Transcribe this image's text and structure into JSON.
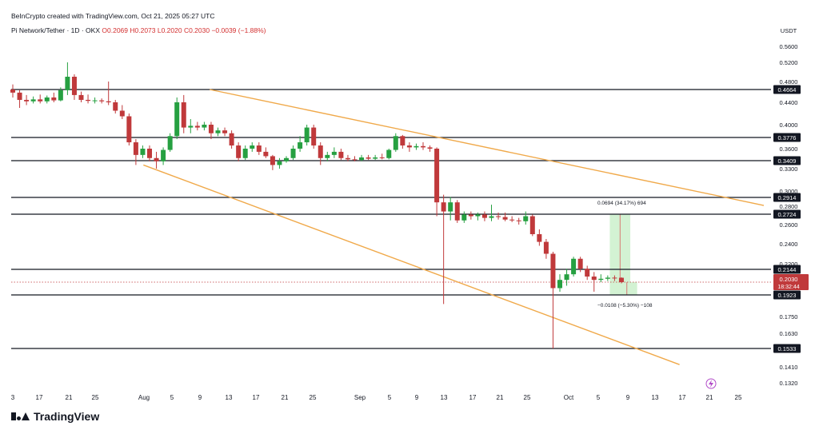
{
  "credit": "BeInCrypto created with TradingView.com, Oct 21, 2025 05:27 UTC",
  "symbol": {
    "name": "Pi Network/Tether · 1D · OKX",
    "ohlc": "O0.2069 H0.2073 L0.2020 C0.2030 −0.0039 (−1.88%)"
  },
  "logo_text": "TradingView",
  "colors": {
    "up": "#26a041",
    "down": "#c0393b",
    "trendline": "#f0a94a",
    "level": "#131722",
    "measure_up": "#c8efc8",
    "measure_down": "#c8efc8"
  },
  "chart_data": {
    "type": "candlestick",
    "currency": "USDT",
    "y_ticks": [
      "0.5600",
      "0.5200",
      "0.4800",
      "0.4400",
      "0.4000",
      "0.3600",
      "0.3300",
      "0.3000",
      "0.2800",
      "0.2600",
      "0.2400",
      "0.2200",
      "0.1750",
      "0.1630",
      "0.1410",
      "0.1320"
    ],
    "x_ticks": [
      "3",
      "17",
      "21",
      "25",
      "Aug",
      "5",
      "9",
      "13",
      "17",
      "21",
      "25",
      "Sep",
      "5",
      "9",
      "13",
      "17",
      "21",
      "25",
      "Oct",
      "5",
      "9",
      "13",
      "17",
      "21",
      "25"
    ],
    "horizontal_levels": [
      "0.4664",
      "0.3776",
      "0.3409",
      "0.2914",
      "0.2724",
      "0.2144",
      "0.1923",
      "0.1533"
    ],
    "current_price": {
      "value": "0.2030",
      "countdown": "18:32:44"
    },
    "measure_up_label": "0.0694 (34.17%) 694",
    "measure_down_label": "−0.0108 (−5.30%) −108",
    "candles": [
      {
        "o": 0.4664,
        "h": 0.475,
        "l": 0.45,
        "c": 0.46
      },
      {
        "o": 0.46,
        "h": 0.465,
        "l": 0.43,
        "c": 0.445
      },
      {
        "o": 0.445,
        "h": 0.455,
        "l": 0.435,
        "c": 0.442
      },
      {
        "o": 0.442,
        "h": 0.452,
        "l": 0.438,
        "c": 0.446
      },
      {
        "o": 0.446,
        "h": 0.456,
        "l": 0.438,
        "c": 0.442
      },
      {
        "o": 0.442,
        "h": 0.454,
        "l": 0.438,
        "c": 0.45
      },
      {
        "o": 0.45,
        "h": 0.46,
        "l": 0.44,
        "c": 0.444
      },
      {
        "o": 0.444,
        "h": 0.47,
        "l": 0.442,
        "c": 0.465
      },
      {
        "o": 0.465,
        "h": 0.52,
        "l": 0.455,
        "c": 0.49
      },
      {
        "o": 0.49,
        "h": 0.495,
        "l": 0.445,
        "c": 0.455
      },
      {
        "o": 0.455,
        "h": 0.462,
        "l": 0.44,
        "c": 0.445
      },
      {
        "o": 0.445,
        "h": 0.456,
        "l": 0.438,
        "c": 0.443
      },
      {
        "o": 0.443,
        "h": 0.45,
        "l": 0.438,
        "c": 0.444
      },
      {
        "o": 0.444,
        "h": 0.448,
        "l": 0.438,
        "c": 0.442
      },
      {
        "o": 0.442,
        "h": 0.48,
        "l": 0.435,
        "c": 0.44
      },
      {
        "o": 0.44,
        "h": 0.445,
        "l": 0.42,
        "c": 0.425
      },
      {
        "o": 0.425,
        "h": 0.435,
        "l": 0.41,
        "c": 0.415
      },
      {
        "o": 0.415,
        "h": 0.42,
        "l": 0.365,
        "c": 0.37
      },
      {
        "o": 0.37,
        "h": 0.375,
        "l": 0.335,
        "c": 0.35
      },
      {
        "o": 0.35,
        "h": 0.365,
        "l": 0.345,
        "c": 0.36
      },
      {
        "o": 0.36,
        "h": 0.365,
        "l": 0.34,
        "c": 0.345
      },
      {
        "o": 0.345,
        "h": 0.355,
        "l": 0.33,
        "c": 0.34
      },
      {
        "o": 0.34,
        "h": 0.362,
        "l": 0.335,
        "c": 0.358
      },
      {
        "o": 0.358,
        "h": 0.385,
        "l": 0.355,
        "c": 0.38
      },
      {
        "o": 0.38,
        "h": 0.45,
        "l": 0.375,
        "c": 0.44
      },
      {
        "o": 0.44,
        "h": 0.455,
        "l": 0.385,
        "c": 0.395
      },
      {
        "o": 0.395,
        "h": 0.41,
        "l": 0.385,
        "c": 0.398
      },
      {
        "o": 0.398,
        "h": 0.405,
        "l": 0.39,
        "c": 0.395
      },
      {
        "o": 0.395,
        "h": 0.405,
        "l": 0.39,
        "c": 0.4
      },
      {
        "o": 0.4,
        "h": 0.405,
        "l": 0.375,
        "c": 0.385
      },
      {
        "o": 0.385,
        "h": 0.395,
        "l": 0.38,
        "c": 0.39
      },
      {
        "o": 0.39,
        "h": 0.395,
        "l": 0.38,
        "c": 0.385
      },
      {
        "o": 0.385,
        "h": 0.39,
        "l": 0.36,
        "c": 0.365
      },
      {
        "o": 0.365,
        "h": 0.37,
        "l": 0.34,
        "c": 0.345
      },
      {
        "o": 0.345,
        "h": 0.365,
        "l": 0.342,
        "c": 0.36
      },
      {
        "o": 0.36,
        "h": 0.37,
        "l": 0.355,
        "c": 0.365
      },
      {
        "o": 0.365,
        "h": 0.37,
        "l": 0.35,
        "c": 0.355
      },
      {
        "o": 0.355,
        "h": 0.362,
        "l": 0.345,
        "c": 0.348
      },
      {
        "o": 0.348,
        "h": 0.35,
        "l": 0.328,
        "c": 0.335
      },
      {
        "o": 0.335,
        "h": 0.345,
        "l": 0.33,
        "c": 0.34
      },
      {
        "o": 0.34,
        "h": 0.348,
        "l": 0.338,
        "c": 0.345
      },
      {
        "o": 0.345,
        "h": 0.365,
        "l": 0.342,
        "c": 0.36
      },
      {
        "o": 0.36,
        "h": 0.38,
        "l": 0.355,
        "c": 0.37
      },
      {
        "o": 0.37,
        "h": 0.4,
        "l": 0.365,
        "c": 0.395
      },
      {
        "o": 0.395,
        "h": 0.4,
        "l": 0.36,
        "c": 0.365
      },
      {
        "o": 0.365,
        "h": 0.37,
        "l": 0.335,
        "c": 0.345
      },
      {
        "o": 0.345,
        "h": 0.355,
        "l": 0.34,
        "c": 0.35
      },
      {
        "o": 0.35,
        "h": 0.362,
        "l": 0.345,
        "c": 0.355
      },
      {
        "o": 0.355,
        "h": 0.36,
        "l": 0.342,
        "c": 0.345
      },
      {
        "o": 0.345,
        "h": 0.35,
        "l": 0.34,
        "c": 0.343
      },
      {
        "o": 0.343,
        "h": 0.348,
        "l": 0.34,
        "c": 0.342
      },
      {
        "o": 0.342,
        "h": 0.35,
        "l": 0.34,
        "c": 0.346
      },
      {
        "o": 0.346,
        "h": 0.35,
        "l": 0.342,
        "c": 0.344
      },
      {
        "o": 0.344,
        "h": 0.35,
        "l": 0.342,
        "c": 0.346
      },
      {
        "o": 0.346,
        "h": 0.352,
        "l": 0.343,
        "c": 0.345
      },
      {
        "o": 0.345,
        "h": 0.36,
        "l": 0.343,
        "c": 0.358
      },
      {
        "o": 0.358,
        "h": 0.385,
        "l": 0.355,
        "c": 0.38
      },
      {
        "o": 0.38,
        "h": 0.382,
        "l": 0.36,
        "c": 0.365
      },
      {
        "o": 0.365,
        "h": 0.37,
        "l": 0.355,
        "c": 0.362
      },
      {
        "o": 0.362,
        "h": 0.368,
        "l": 0.358,
        "c": 0.364
      },
      {
        "o": 0.364,
        "h": 0.37,
        "l": 0.358,
        "c": 0.362
      },
      {
        "o": 0.362,
        "h": 0.365,
        "l": 0.355,
        "c": 0.36
      },
      {
        "o": 0.36,
        "h": 0.362,
        "l": 0.27,
        "c": 0.285
      },
      {
        "o": 0.285,
        "h": 0.295,
        "l": 0.185,
        "c": 0.275
      },
      {
        "o": 0.275,
        "h": 0.292,
        "l": 0.265,
        "c": 0.285
      },
      {
        "o": 0.285,
        "h": 0.288,
        "l": 0.262,
        "c": 0.265
      },
      {
        "o": 0.265,
        "h": 0.275,
        "l": 0.262,
        "c": 0.272
      },
      {
        "o": 0.272,
        "h": 0.275,
        "l": 0.266,
        "c": 0.27
      },
      {
        "o": 0.27,
        "h": 0.274,
        "l": 0.265,
        "c": 0.272
      },
      {
        "o": 0.272,
        "h": 0.275,
        "l": 0.264,
        "c": 0.268
      },
      {
        "o": 0.268,
        "h": 0.282,
        "l": 0.264,
        "c": 0.27
      },
      {
        "o": 0.27,
        "h": 0.274,
        "l": 0.266,
        "c": 0.269
      },
      {
        "o": 0.269,
        "h": 0.274,
        "l": 0.264,
        "c": 0.266
      },
      {
        "o": 0.266,
        "h": 0.27,
        "l": 0.263,
        "c": 0.265
      },
      {
        "o": 0.265,
        "h": 0.268,
        "l": 0.26,
        "c": 0.264
      },
      {
        "o": 0.264,
        "h": 0.275,
        "l": 0.26,
        "c": 0.27
      },
      {
        "o": 0.27,
        "h": 0.272,
        "l": 0.248,
        "c": 0.25
      },
      {
        "o": 0.25,
        "h": 0.255,
        "l": 0.238,
        "c": 0.242
      },
      {
        "o": 0.242,
        "h": 0.245,
        "l": 0.225,
        "c": 0.23
      },
      {
        "o": 0.23,
        "h": 0.232,
        "l": 0.1533,
        "c": 0.198
      },
      {
        "o": 0.198,
        "h": 0.21,
        "l": 0.195,
        "c": 0.205
      },
      {
        "o": 0.205,
        "h": 0.215,
        "l": 0.2,
        "c": 0.21
      },
      {
        "o": 0.21,
        "h": 0.227,
        "l": 0.208,
        "c": 0.225
      },
      {
        "o": 0.225,
        "h": 0.227,
        "l": 0.212,
        "c": 0.215
      },
      {
        "o": 0.215,
        "h": 0.218,
        "l": 0.205,
        "c": 0.208
      },
      {
        "o": 0.208,
        "h": 0.212,
        "l": 0.195,
        "c": 0.205
      },
      {
        "o": 0.205,
        "h": 0.21,
        "l": 0.203,
        "c": 0.206
      },
      {
        "o": 0.206,
        "h": 0.209,
        "l": 0.204,
        "c": 0.207
      },
      {
        "o": 0.207,
        "h": 0.209,
        "l": 0.204,
        "c": 0.2069
      },
      {
        "o": 0.2069,
        "h": 0.2073,
        "l": 0.202,
        "c": 0.203
      }
    ]
  }
}
